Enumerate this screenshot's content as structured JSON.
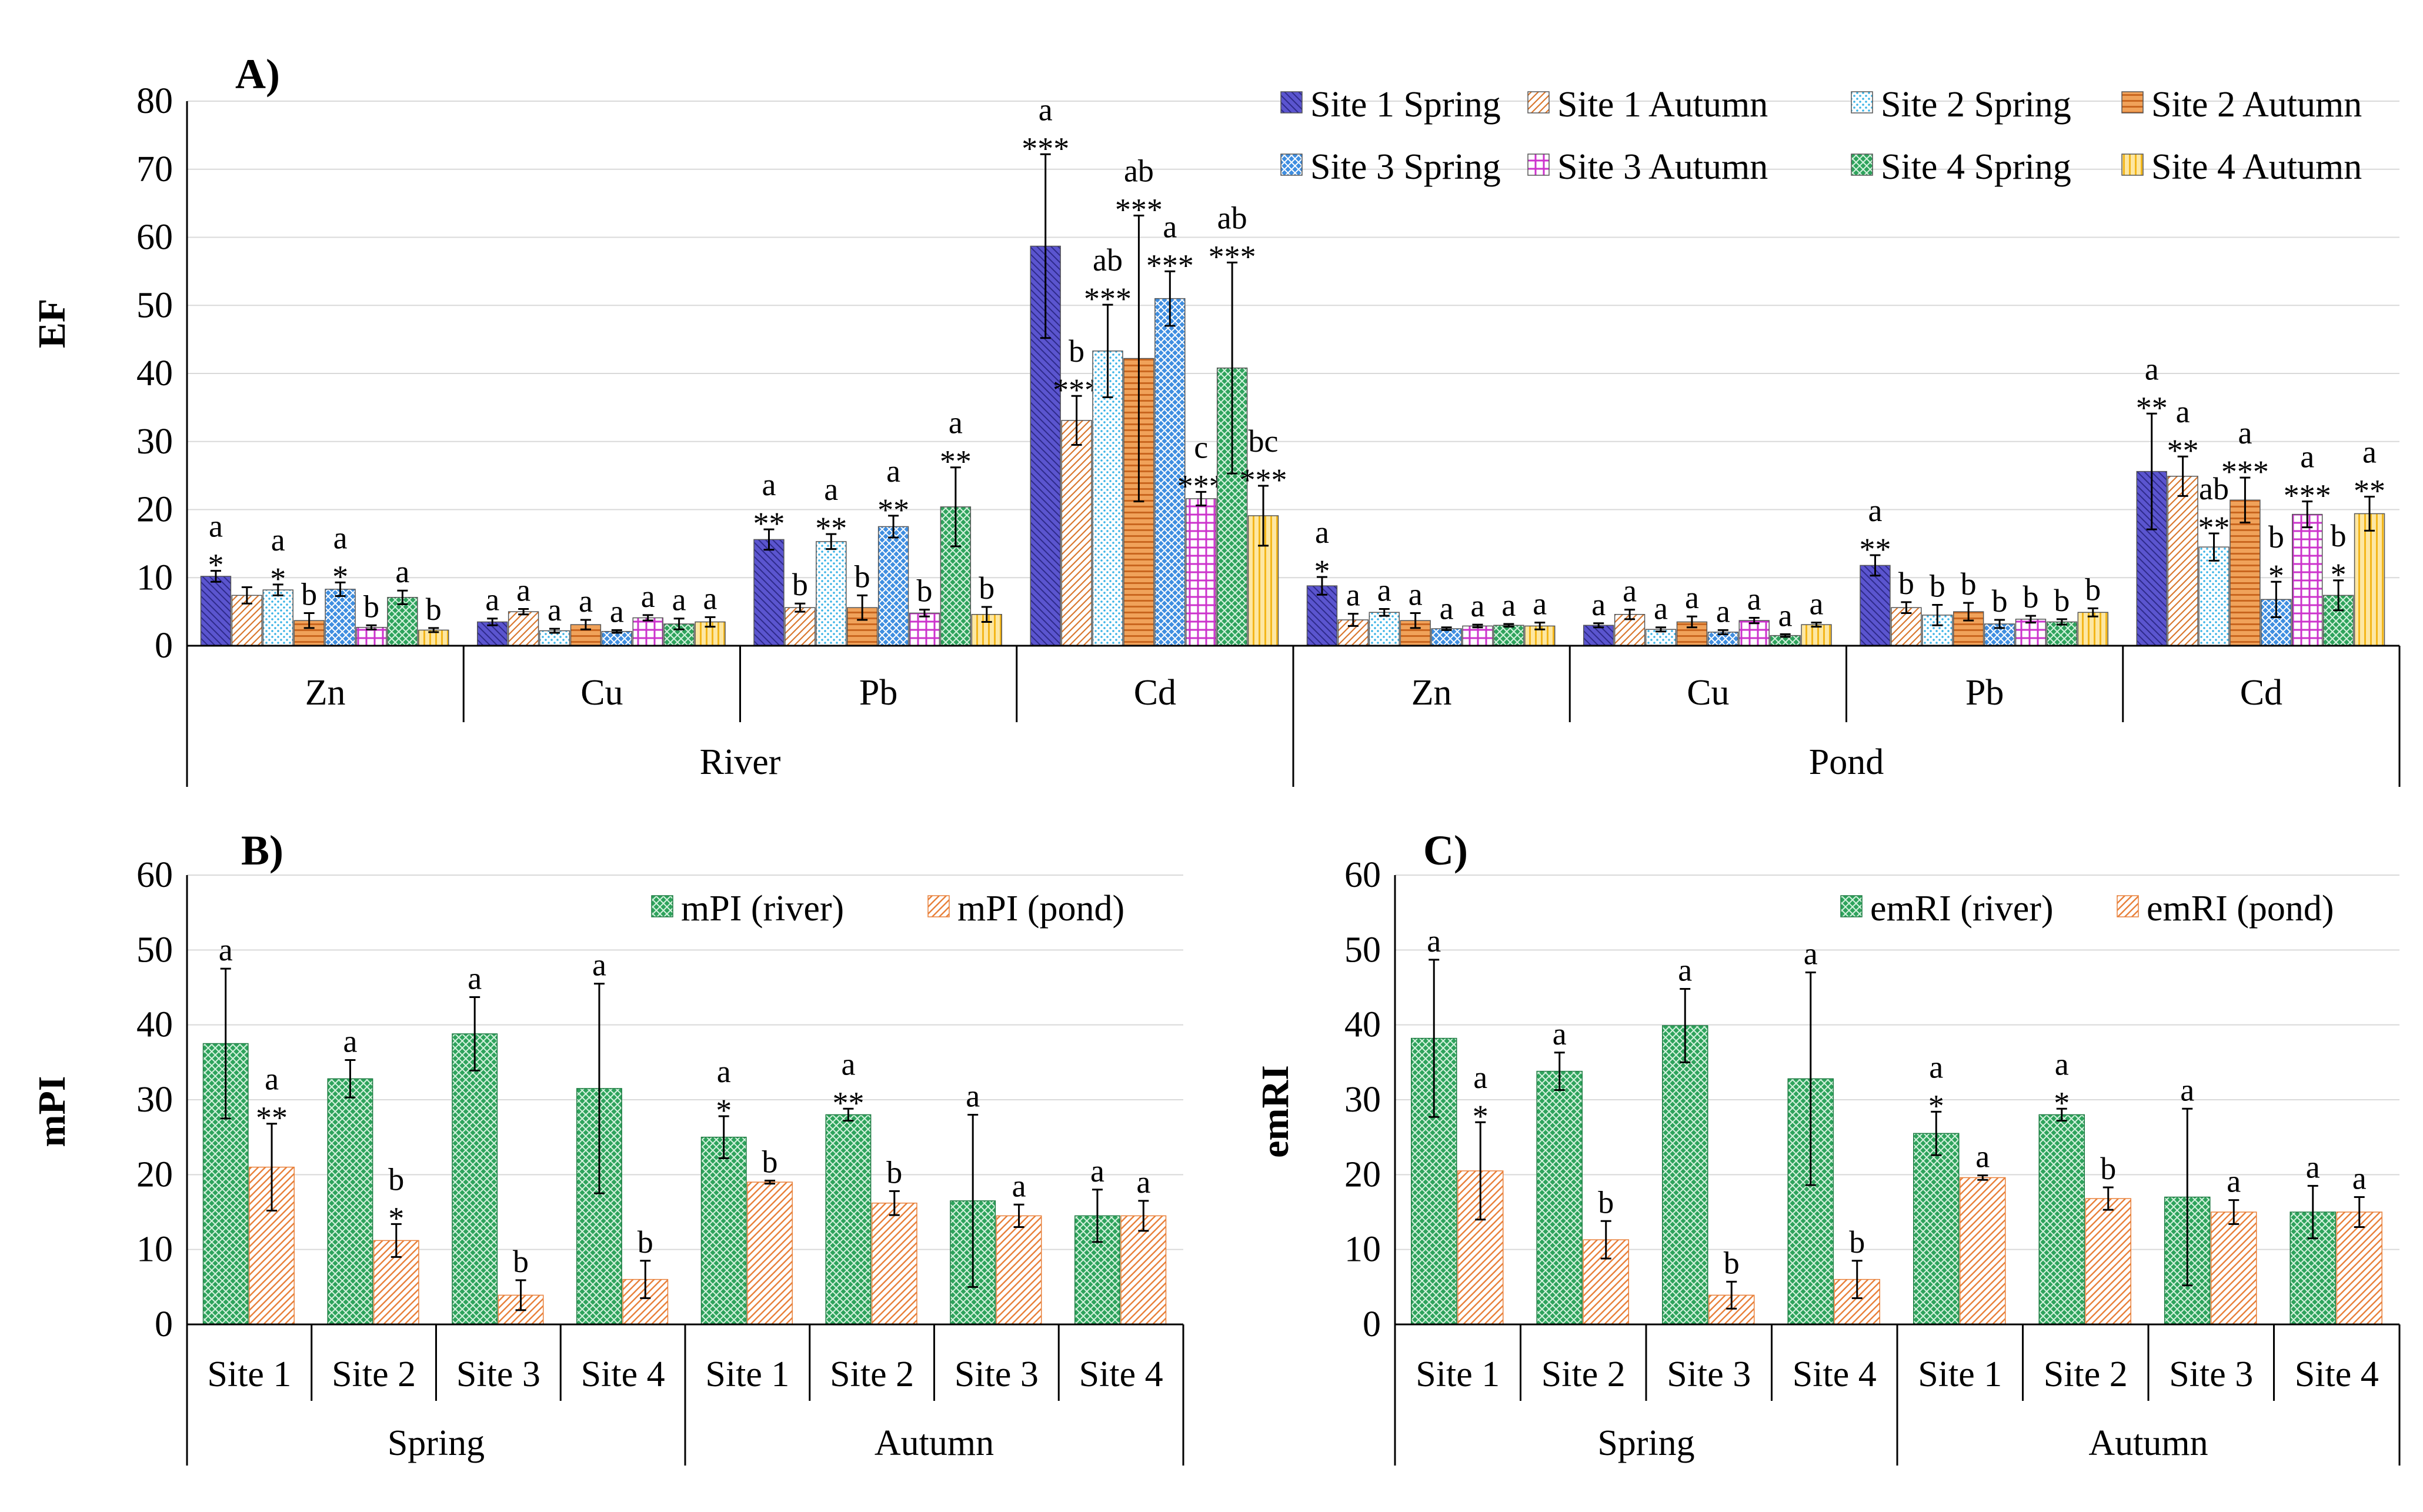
{
  "chart_data": [
    {
      "panel": "A)",
      "type": "bar",
      "ylabel": "EF",
      "ylim": [
        0,
        80
      ],
      "yticks": [
        "0",
        "10",
        "20",
        "30",
        "40",
        "50",
        "60",
        "70",
        "80"
      ],
      "groups": [
        "River",
        "Pond"
      ],
      "metals": [
        "Zn",
        "Cu",
        "Pb",
        "Cd"
      ],
      "series": [
        {
          "name": "Site 1 Spring",
          "values": [
            10.2,
            3.5,
            15.6,
            58.7,
            8.8,
            3.0,
            11.8,
            25.6
          ],
          "err": [
            0.8,
            0.5,
            1.5,
            13.5,
            1.3,
            0.3,
            1.5,
            8.5
          ],
          "labels": [
            "a *",
            "a",
            "a **",
            "a ***",
            "a *",
            "a",
            "a **",
            "a **"
          ]
        },
        {
          "name": "Site 1 Autumn",
          "values": [
            7.4,
            5.0,
            5.6,
            33.1,
            3.8,
            4.6,
            5.6,
            24.9
          ],
          "err": [
            1.2,
            0.4,
            0.6,
            3.6,
            0.9,
            0.7,
            0.8,
            2.9
          ],
          "labels": [
            "",
            "a",
            "b",
            "b ***",
            "a",
            "a",
            "b",
            "a **"
          ]
        },
        {
          "name": "Site 2 Spring",
          "values": [
            8.2,
            2.2,
            15.3,
            43.3,
            4.9,
            2.4,
            4.5,
            14.5
          ],
          "err": [
            0.8,
            0.3,
            1.1,
            6.8,
            0.5,
            0.3,
            1.5,
            2.0
          ],
          "labels": [
            "a *",
            "a",
            "a **",
            "ab ***",
            "a",
            "a",
            "b",
            "ab **"
          ]
        },
        {
          "name": "Site 2 Autumn",
          "values": [
            3.7,
            3.1,
            5.6,
            42.2,
            3.7,
            3.5,
            5.0,
            21.4
          ],
          "err": [
            1.1,
            0.7,
            1.8,
            21.0,
            1.1,
            0.8,
            1.3,
            3.3
          ],
          "labels": [
            "b",
            "a",
            "b",
            "ab ***",
            "a",
            "a",
            "b",
            "a ***"
          ]
        },
        {
          "name": "Site 3 Spring",
          "values": [
            8.3,
            2.1,
            17.5,
            51.0,
            2.5,
            2.0,
            3.2,
            6.8
          ],
          "err": [
            1.0,
            0.2,
            1.6,
            4.0,
            0.2,
            0.3,
            0.6,
            2.6
          ],
          "labels": [
            "a *",
            "a",
            "a **",
            "a ***",
            "a",
            "a",
            "b",
            "b *"
          ]
        },
        {
          "name": "Site 3 Autumn",
          "values": [
            2.7,
            4.1,
            4.8,
            21.6,
            2.9,
            3.7,
            3.9,
            19.3
          ],
          "err": [
            0.3,
            0.4,
            0.5,
            1.0,
            0.2,
            0.4,
            0.5,
            1.9
          ],
          "labels": [
            "b",
            "a",
            "b",
            "c ***",
            "a",
            "a",
            "b",
            "a ***"
          ]
        },
        {
          "name": "Site 4 Spring",
          "values": [
            7.1,
            3.2,
            20.4,
            40.8,
            3.0,
            1.5,
            3.5,
            7.4
          ],
          "err": [
            1.0,
            0.8,
            5.8,
            15.5,
            0.2,
            0.2,
            0.4,
            2.2
          ],
          "labels": [
            "a",
            "a",
            "a **",
            "ab ***",
            "a",
            "a",
            "b",
            "b *"
          ]
        },
        {
          "name": "Site 4 Autumn",
          "values": [
            2.3,
            3.5,
            4.6,
            19.1,
            2.9,
            3.1,
            4.9,
            19.4
          ],
          "err": [
            0.3,
            0.7,
            1.1,
            4.4,
            0.5,
            0.3,
            0.6,
            2.5
          ],
          "labels": [
            "b",
            "a",
            "b",
            "bc ***",
            "a",
            "a",
            "b",
            "a **"
          ]
        }
      ]
    },
    {
      "panel": "B)",
      "type": "bar",
      "ylabel": "mPI",
      "ylim": [
        0,
        60
      ],
      "yticks": [
        "0",
        "10",
        "20",
        "30",
        "40",
        "50",
        "60"
      ],
      "seasons": [
        "Spring",
        "Autumn"
      ],
      "categories": [
        "Site 1",
        "Site 2",
        "Site 3",
        "Site 4",
        "Site 1",
        "Site 2",
        "Site 3",
        "Site 4"
      ],
      "series": [
        {
          "name": "mPI (river)",
          "values": [
            37.5,
            32.8,
            38.8,
            31.5,
            25.0,
            28.0,
            16.5,
            14.5
          ],
          "err": [
            10.0,
            2.5,
            4.9,
            14.0,
            2.8,
            0.8,
            11.5,
            3.5
          ],
          "labels": [
            "a",
            "a",
            "a",
            "a",
            "a *",
            "a **",
            "a",
            "a"
          ]
        },
        {
          "name": "mPI (pond)",
          "values": [
            21.0,
            11.2,
            3.9,
            6.0,
            19.0,
            16.2,
            14.5,
            14.5
          ],
          "err": [
            5.8,
            2.2,
            2.0,
            2.5,
            0.2,
            1.6,
            1.5,
            2.0
          ],
          "labels": [
            "a **",
            "b *",
            "b",
            "b",
            "b",
            "b",
            "a",
            "a"
          ]
        }
      ]
    },
    {
      "panel": "C)",
      "type": "bar",
      "ylabel": "emRI",
      "ylim": [
        0,
        60
      ],
      "yticks": [
        "0",
        "10",
        "20",
        "30",
        "40",
        "50",
        "60"
      ],
      "seasons": [
        "Spring",
        "Autumn"
      ],
      "categories": [
        "Site 1",
        "Site 2",
        "Site 3",
        "Site 4",
        "Site 1",
        "Site 2",
        "Site 3",
        "Site 4"
      ],
      "series": [
        {
          "name": "emRI (river)",
          "values": [
            38.2,
            33.8,
            39.9,
            32.8,
            25.5,
            28.0,
            17.0,
            15.0
          ],
          "err": [
            10.5,
            2.5,
            4.9,
            14.2,
            2.9,
            0.8,
            11.8,
            3.5
          ],
          "labels": [
            "a",
            "a",
            "a",
            "a",
            "a *",
            "a *",
            "a",
            "a"
          ]
        },
        {
          "name": "emRI (pond)",
          "values": [
            20.5,
            11.3,
            3.9,
            6.0,
            19.6,
            16.8,
            15.0,
            15.0
          ],
          "err": [
            6.5,
            2.5,
            1.8,
            2.5,
            0.3,
            1.5,
            1.6,
            2.0
          ],
          "labels": [
            "a *",
            "b",
            "b",
            "b",
            "a",
            "b",
            "a",
            "a"
          ]
        }
      ]
    }
  ]
}
